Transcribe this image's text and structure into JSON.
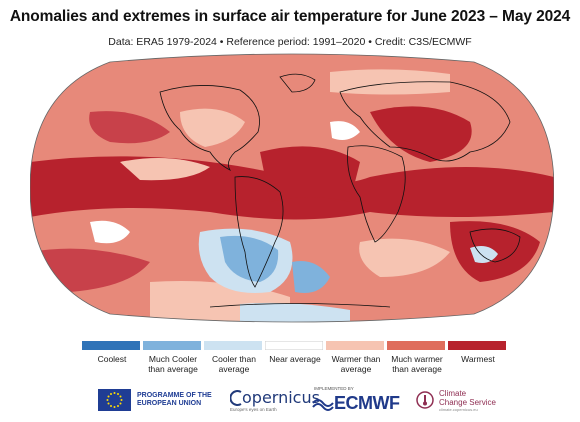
{
  "header": {
    "title": "Anomalies and extremes in surface air temperature for June 2023 – May 2024",
    "subtitle": "Data: ERA5 1979-2024  •  Reference period: 1991–2020  •  Credit: C3S/ECMWF"
  },
  "legend": {
    "items": [
      {
        "label": "Coolest",
        "color": "#2f73b8"
      },
      {
        "label": "Much Cooler than average",
        "color": "#7fb2dc"
      },
      {
        "label": "Cooler than average",
        "color": "#cde2f1"
      },
      {
        "label": "Near average",
        "color": "#ffffff"
      },
      {
        "label": "Warmer than average",
        "color": "#f6c4b2"
      },
      {
        "label": "Much warmer than average",
        "color": "#df6d5c"
      },
      {
        "label": "Warmest",
        "color": "#b7222d"
      }
    ]
  },
  "logos": {
    "eu": "PROGRAMME OF THE EUROPEAN UNION",
    "copernicus": "opernicus",
    "copernicus_sub": "Europe's eyes on Earth",
    "ecmwf_tag": "IMPLEMENTED BY",
    "ecmwf": "ECMWF",
    "c3s_line1": "Climate",
    "c3s_line2": "Change Service",
    "c3s_sub": "climate.copernicus.eu"
  }
}
